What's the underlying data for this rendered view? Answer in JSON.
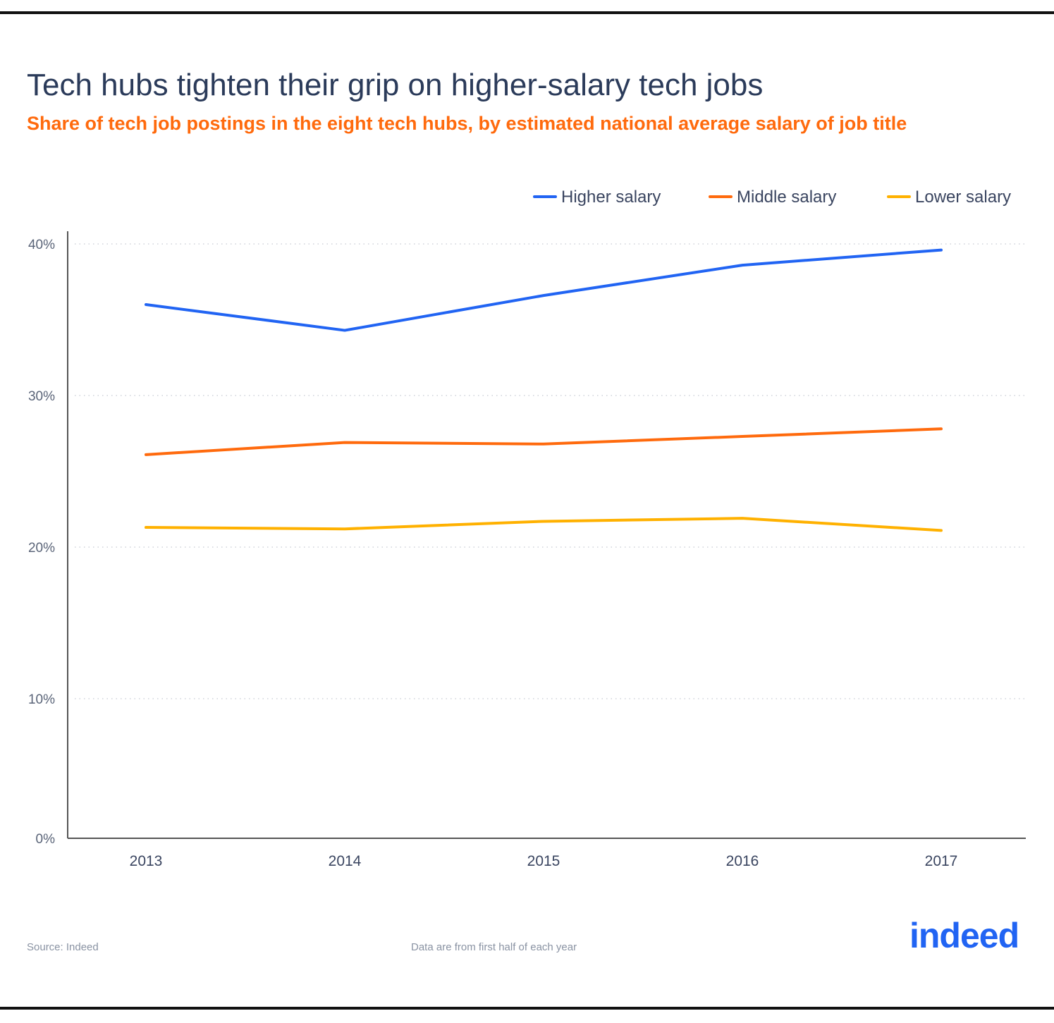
{
  "title": "Tech hubs tighten their grip on higher-salary tech jobs",
  "subtitle": "Share of tech job postings in the eight tech hubs, by estimated national average salary of job title",
  "footer": {
    "source": "Source: Indeed",
    "note": "Data are from first half of each year",
    "logo": "indeed"
  },
  "chart_data": {
    "type": "line",
    "categories": [
      "2013",
      "2014",
      "2015",
      "2016",
      "2017"
    ],
    "yticks": [
      "0%",
      "10%",
      "20%",
      "30%",
      "40%"
    ],
    "ylim": [
      0,
      40
    ],
    "grid": true,
    "legend": "top-right",
    "series": [
      {
        "name": "Higher salary",
        "color": "#2164f3",
        "values": [
          36.0,
          34.3,
          36.6,
          38.6,
          39.6
        ]
      },
      {
        "name": "Middle salary",
        "color": "#ff6a0d",
        "values": [
          26.1,
          26.9,
          26.8,
          27.3,
          27.8
        ]
      },
      {
        "name": "Lower salary",
        "color": "#ffb100",
        "values": [
          21.3,
          21.2,
          21.7,
          21.9,
          21.1
        ]
      }
    ]
  }
}
